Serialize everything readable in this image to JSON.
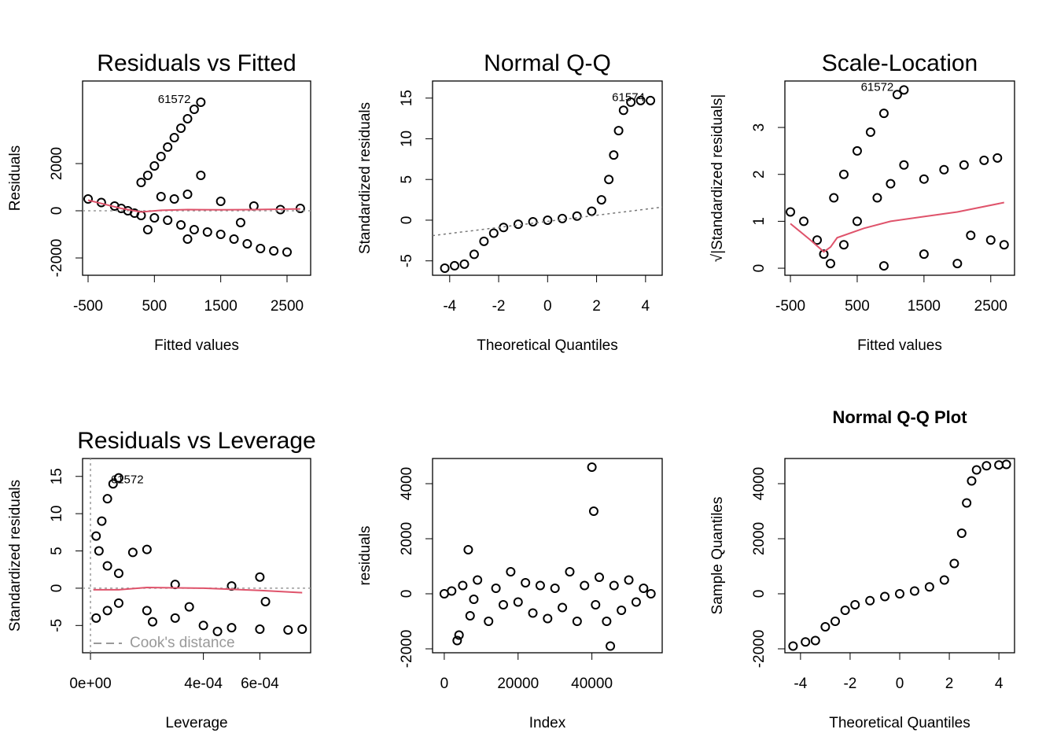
{
  "chart_data": [
    {
      "type": "scatter",
      "title": "Residuals vs Fitted",
      "xlabel": "Fitted values",
      "ylabel": "Residuals",
      "xlim": [
        -583,
        2856
      ],
      "ylim": [
        -2733,
        5500
      ],
      "xticks": [
        -500,
        500,
        1500,
        2500
      ],
      "yticks": [
        -2000,
        0,
        2000
      ],
      "annotations": [
        {
          "text": "61572",
          "x": 800,
          "y": 4700
        }
      ],
      "series": [
        {
          "style": "points",
          "color": "#000000",
          "x": [
            300,
            400,
            500,
            600,
            700,
            800,
            900,
            1000,
            1100,
            1200,
            -500,
            -300,
            -100,
            0,
            100,
            200,
            300,
            500,
            700,
            900,
            1100,
            1300,
            1500,
            1700,
            1900,
            2100,
            2300,
            2500,
            2700,
            2400,
            1000,
            1200,
            800,
            1500,
            2000,
            600,
            1800,
            400,
            1000
          ],
          "values": [
            1200,
            1500,
            1900,
            2300,
            2700,
            3100,
            3500,
            3900,
            4300,
            4600,
            500,
            350,
            200,
            100,
            0,
            -100,
            -200,
            -300,
            -400,
            -600,
            -800,
            -900,
            -1000,
            -1200,
            -1400,
            -1600,
            -1700,
            -1750,
            100,
            50,
            700,
            1500,
            500,
            400,
            200,
            600,
            -500,
            -800,
            -1200
          ]
        },
        {
          "style": "dotted",
          "color": "#999999",
          "x": [
            -583,
            2856
          ],
          "values": [
            0,
            0
          ]
        },
        {
          "style": "line",
          "color": "#DF536B",
          "x": [
            -500,
            0,
            300,
            600,
            1000,
            1500,
            2000,
            2700
          ],
          "values": [
            450,
            100,
            -50,
            20,
            50,
            40,
            50,
            80
          ]
        }
      ]
    },
    {
      "type": "scatter",
      "title": "Normal Q-Q",
      "xlabel": "Theoretical Quantiles",
      "ylabel": "Standardized residuals",
      "xlim": [
        -4.7,
        4.68
      ],
      "ylim": [
        -6.77,
        17.1
      ],
      "xticks": [
        -4,
        -2,
        0,
        2,
        4
      ],
      "yticks": [
        -5,
        0,
        5,
        10,
        15
      ],
      "annotations": [
        {
          "text": "61574",
          "x": 3.3,
          "y": 15
        }
      ],
      "series": [
        {
          "style": "points",
          "color": "#000000",
          "x": [
            -4.2,
            -3.8,
            -3.4,
            -3,
            -2.6,
            -2.2,
            -1.8,
            -1.2,
            -0.6,
            0,
            0.6,
            1.2,
            1.8,
            2.2,
            2.5,
            2.7,
            2.9,
            3.1,
            3.4,
            3.8,
            4.2
          ],
          "values": [
            -5.9,
            -5.6,
            -5.4,
            -4.2,
            -2.6,
            -1.6,
            -0.9,
            -0.5,
            -0.2,
            0,
            0.2,
            0.5,
            1.1,
            2.5,
            5,
            8,
            11,
            13.5,
            14.5,
            14.7,
            14.7
          ]
        },
        {
          "style": "dotted",
          "color": "#777777",
          "x": [
            -4.7,
            4.68
          ],
          "values": [
            -1.9,
            1.6
          ]
        }
      ]
    },
    {
      "type": "scatter",
      "title": "Scale-Location",
      "xlabel": "Fitted values",
      "ylabel": "√|Standardized residuals|",
      "xlim": [
        -583,
        2856
      ],
      "ylim": [
        -0.15,
        3.99
      ],
      "xticks": [
        -500,
        500,
        1500,
        2500
      ],
      "yticks": [
        0,
        1,
        2,
        3
      ],
      "annotations": [
        {
          "text": "61572",
          "x": 800,
          "y": 3.85
        }
      ],
      "series": [
        {
          "style": "points",
          "color": "#000000",
          "x": [
            150,
            300,
            500,
            700,
            900,
            1100,
            1200,
            -500,
            -300,
            -100,
            0,
            100,
            300,
            500,
            800,
            1000,
            1200,
            1500,
            1800,
            2100,
            2400,
            2600,
            2000,
            2200,
            2500,
            2700,
            1500,
            900
          ],
          "values": [
            1.5,
            2,
            2.5,
            2.9,
            3.3,
            3.7,
            3.8,
            1.2,
            1,
            0.6,
            0.3,
            0.1,
            0.5,
            1,
            1.5,
            1.8,
            2.2,
            1.9,
            2.1,
            2.2,
            2.3,
            2.35,
            0.1,
            0.7,
            0.6,
            0.5,
            0.3,
            0.05
          ]
        },
        {
          "style": "line",
          "color": "#DF536B",
          "x": [
            -500,
            -200,
            0,
            100,
            200,
            600,
            1000,
            1500,
            2000,
            2700
          ],
          "values": [
            0.95,
            0.6,
            0.35,
            0.45,
            0.65,
            0.85,
            1,
            1.1,
            1.2,
            1.4
          ]
        }
      ]
    },
    {
      "type": "scatter",
      "title": "Residuals vs Leverage",
      "xlabel": "Leverage",
      "ylabel": "Standardized residuals",
      "xlim": [
        -2.8e-05,
        0.00078
      ],
      "ylim": [
        -8.66,
        17.4
      ],
      "xticks": [
        {
          "value": 0,
          "label": "0e+00"
        },
        {
          "value": 0.0004,
          "label": "4e-04"
        },
        {
          "value": 0.0006,
          "label": "6e-04"
        }
      ],
      "yticks": [
        -5,
        0,
        5,
        10,
        15
      ],
      "annotations": [
        {
          "text": "61572",
          "x": 0.00013,
          "y": 14.5
        }
      ],
      "legend": {
        "position": "bottomleft",
        "label": "Cook's distance",
        "color": "#999999"
      },
      "series": [
        {
          "style": "points",
          "color": "#000000",
          "x": [
            2e-05,
            4e-05,
            6e-05,
            8e-05,
            0.0001,
            3e-05,
            6e-05,
            0.0001,
            0.00015,
            0.0002,
            2e-05,
            6e-05,
            0.0001,
            0.0002,
            0.0003,
            0.0004,
            0.0005,
            0.0006,
            0.0007,
            0.00075,
            0.0006,
            0.00062,
            0.0005,
            0.0003,
            0.00022,
            0.00035,
            0.00045
          ],
          "values": [
            7,
            9,
            12,
            14,
            14.8,
            5,
            3,
            2,
            4.8,
            5.2,
            -4,
            -3,
            -2,
            -3,
            -4,
            -5,
            -5.3,
            -5.5,
            -5.6,
            -5.5,
            1.5,
            -1.8,
            0.3,
            0.5,
            -4.5,
            -2.5,
            -5.8
          ]
        },
        {
          "style": "dotted",
          "color": "#999999",
          "x": [
            -2.8e-05,
            0.00078
          ],
          "values": [
            0,
            0
          ]
        },
        {
          "style": "dotted",
          "color": "#999999",
          "x": [
            0,
            0
          ],
          "values": [
            -8.66,
            17.4
          ]
        },
        {
          "style": "line",
          "color": "#DF536B",
          "x": [
            1e-05,
            0.0001,
            0.0002,
            0.0004,
            0.0006,
            0.00075
          ],
          "values": [
            -0.2,
            -0.2,
            0.1,
            0,
            -0.3,
            -0.6
          ]
        }
      ]
    },
    {
      "type": "scatter",
      "xlabel": "Index",
      "ylabel": "residuals",
      "xlim": [
        -3175,
        59050
      ],
      "ylim": [
        -2143,
        4914
      ],
      "xticks": [
        0,
        20000,
        40000
      ],
      "yticks": [
        -2000,
        0,
        2000,
        4000
      ],
      "series": [
        {
          "style": "points",
          "color": "#000000",
          "x": [
            0,
            2000,
            3500,
            4000,
            5000,
            6500,
            7000,
            8000,
            9000,
            12000,
            14000,
            16000,
            18000,
            20000,
            22000,
            24000,
            26000,
            28000,
            30000,
            32000,
            34000,
            36000,
            38000,
            40000,
            40500,
            41000,
            42000,
            44000,
            45000,
            46000,
            48000,
            50000,
            52000,
            54000,
            56000
          ],
          "values": [
            0,
            100,
            -1700,
            -1500,
            300,
            1600,
            -800,
            -200,
            500,
            -1000,
            200,
            -400,
            800,
            -300,
            400,
            -700,
            300,
            -900,
            200,
            -500,
            800,
            -1000,
            300,
            4600,
            3000,
            -400,
            600,
            -1000,
            -1900,
            300,
            -600,
            500,
            -300,
            200,
            0
          ]
        }
      ]
    },
    {
      "type": "scatter",
      "title": "Normal Q-Q Plot",
      "title_bold": true,
      "xlabel": "Theoretical Quantiles",
      "ylabel": "Sample Quantiles",
      "xlim": [
        -4.63,
        4.63
      ],
      "ylim": [
        -2143,
        4914
      ],
      "xticks": [
        -4,
        -2,
        0,
        2,
        4
      ],
      "yticks": [
        -2000,
        0,
        2000,
        4000
      ],
      "series": [
        {
          "style": "points",
          "color": "#000000",
          "x": [
            -4.3,
            -3.8,
            -3.4,
            -3,
            -2.6,
            -2.2,
            -1.8,
            -1.2,
            -0.6,
            0,
            0.6,
            1.2,
            1.8,
            2.2,
            2.5,
            2.7,
            2.9,
            3.1,
            3.5,
            4,
            4.3
          ],
          "values": [
            -1900,
            -1750,
            -1700,
            -1200,
            -1000,
            -600,
            -400,
            -250,
            -100,
            0,
            100,
            250,
            500,
            1100,
            2200,
            3300,
            4100,
            4500,
            4650,
            4680,
            4700
          ]
        }
      ]
    }
  ]
}
